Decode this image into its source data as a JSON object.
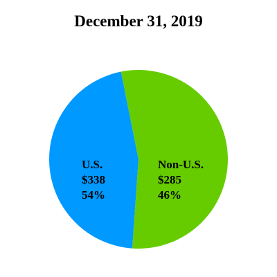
{
  "chart_data": {
    "type": "pie",
    "title": "December 31, 2019",
    "slices": [
      {
        "category": "U.S.",
        "value_label": "$338",
        "percent_label": "54%",
        "value": 338,
        "percent": 54,
        "color": "#66cc00"
      },
      {
        "category": "Non-U.S.",
        "value_label": "$285",
        "percent_label": "46%",
        "value": 285,
        "percent": 46,
        "color": "#0099ff"
      }
    ],
    "legend": false
  }
}
